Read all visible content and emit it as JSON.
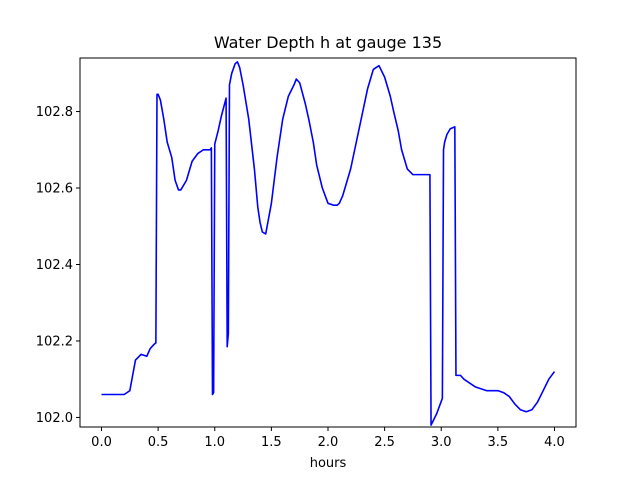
{
  "chart_data": {
    "type": "line",
    "title": "Water Depth h at gauge 135",
    "xlabel": "hours",
    "ylabel": "",
    "xlim": [
      -0.19,
      4.19
    ],
    "ylim": [
      101.975,
      102.94
    ],
    "xticks": [
      0.0,
      0.5,
      1.0,
      1.5,
      2.0,
      2.5,
      3.0,
      3.5,
      4.0
    ],
    "xtick_labels": [
      "0.0",
      "0.5",
      "1.0",
      "1.5",
      "2.0",
      "2.5",
      "3.0",
      "3.5",
      "4.0"
    ],
    "yticks": [
      102.0,
      102.2,
      102.4,
      102.6,
      102.8
    ],
    "ytick_labels": [
      "102.0",
      "102.2",
      "102.4",
      "102.6",
      "102.8"
    ],
    "grid": false,
    "series": [
      {
        "color": "#0000ff",
        "x": [
          0.0,
          0.1,
          0.2,
          0.25,
          0.3,
          0.35,
          0.4,
          0.43,
          0.46,
          0.48,
          0.49,
          0.5,
          0.52,
          0.55,
          0.58,
          0.62,
          0.65,
          0.68,
          0.7,
          0.75,
          0.8,
          0.85,
          0.9,
          0.96,
          0.97,
          0.98,
          0.99,
          1.0,
          1.03,
          1.06,
          1.1,
          1.11,
          1.12,
          1.13,
          1.15,
          1.18,
          1.2,
          1.22,
          1.25,
          1.3,
          1.35,
          1.38,
          1.4,
          1.42,
          1.45,
          1.5,
          1.55,
          1.6,
          1.65,
          1.7,
          1.72,
          1.75,
          1.8,
          1.83,
          1.87,
          1.9,
          1.95,
          2.0,
          2.05,
          2.08,
          2.1,
          2.13,
          2.15,
          2.2,
          2.25,
          2.3,
          2.35,
          2.4,
          2.45,
          2.5,
          2.55,
          2.58,
          2.62,
          2.65,
          2.7,
          2.75,
          2.8,
          2.85,
          2.9,
          2.91,
          2.96,
          3.01,
          3.02,
          3.03,
          3.05,
          3.08,
          3.12,
          3.13,
          3.14,
          3.17,
          3.2,
          3.3,
          3.4,
          3.5,
          3.55,
          3.6,
          3.65,
          3.7,
          3.75,
          3.8,
          3.85,
          3.9,
          3.95,
          4.0
        ],
        "y": [
          102.06,
          102.06,
          102.06,
          102.07,
          102.15,
          102.165,
          102.16,
          102.18,
          102.19,
          102.195,
          102.845,
          102.845,
          102.83,
          102.78,
          102.72,
          102.68,
          102.62,
          102.595,
          102.595,
          102.62,
          102.67,
          102.69,
          102.7,
          102.7,
          102.705,
          102.06,
          102.065,
          102.715,
          102.75,
          102.79,
          102.835,
          102.185,
          102.22,
          102.87,
          102.9,
          102.925,
          102.93,
          102.915,
          102.87,
          102.78,
          102.65,
          102.55,
          102.51,
          102.485,
          102.48,
          102.56,
          102.68,
          102.78,
          102.84,
          102.87,
          102.885,
          102.875,
          102.82,
          102.78,
          102.72,
          102.66,
          102.6,
          102.56,
          102.555,
          102.555,
          102.56,
          102.58,
          102.6,
          102.65,
          102.72,
          102.79,
          102.86,
          102.91,
          102.92,
          102.89,
          102.84,
          102.8,
          102.75,
          102.7,
          102.65,
          102.635,
          102.635,
          102.635,
          102.635,
          101.98,
          102.01,
          102.05,
          102.7,
          102.72,
          102.74,
          102.755,
          102.76,
          102.11,
          102.11,
          102.11,
          102.1,
          102.08,
          102.07,
          102.07,
          102.065,
          102.055,
          102.035,
          102.02,
          102.015,
          102.02,
          102.04,
          102.07,
          102.1,
          102.12
        ]
      }
    ]
  }
}
